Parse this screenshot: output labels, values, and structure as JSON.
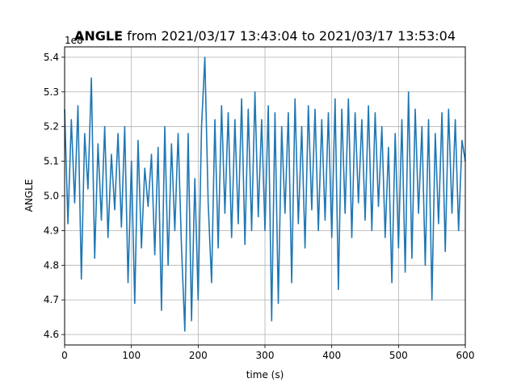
{
  "chart_data": {
    "type": "line",
    "title_bold": "ANGLE",
    "title_rest": " from 2021/03/17 13:43:04 to 2021/03/17 13:53:04",
    "xlabel": "time (s)",
    "ylabel": "ANGLE",
    "y_offset_label": "1e8",
    "xlim": [
      0,
      600
    ],
    "ylim": [
      4.57,
      5.43
    ],
    "xticks": [
      0,
      100,
      200,
      300,
      400,
      500,
      600
    ],
    "xtick_labels": [
      "0",
      "100",
      "200",
      "300",
      "400",
      "500",
      "600"
    ],
    "yticks": [
      4.6,
      4.7,
      4.8,
      4.9,
      5.0,
      5.1,
      5.2,
      5.3,
      5.4
    ],
    "ytick_labels": [
      "4.6",
      "4.7",
      "4.8",
      "4.9",
      "5.0",
      "5.1",
      "5.2",
      "5.3",
      "5.4"
    ],
    "grid": true,
    "line_color": "#1f77b4",
    "series": [
      {
        "x": [
          0,
          5,
          10,
          15,
          20,
          25,
          30,
          35,
          40,
          45,
          50,
          55,
          60,
          65,
          70,
          75,
          80,
          85,
          90,
          95,
          100,
          105,
          110,
          115,
          120,
          125,
          130,
          135,
          140,
          145,
          150,
          155,
          160,
          165,
          170,
          175,
          180,
          185,
          190,
          195,
          200,
          205,
          210,
          215,
          220,
          225,
          230,
          235,
          240,
          245,
          250,
          255,
          260,
          265,
          270,
          275,
          280,
          285,
          290,
          295,
          300,
          305,
          310,
          315,
          320,
          325,
          330,
          335,
          340,
          345,
          350,
          355,
          360,
          365,
          370,
          375,
          380,
          385,
          390,
          395,
          400,
          405,
          410,
          415,
          420,
          425,
          430,
          435,
          440,
          445,
          450,
          455,
          460,
          465,
          470,
          475,
          480,
          485,
          490,
          495,
          500,
          505,
          510,
          515,
          520,
          525,
          530,
          535,
          540,
          545,
          550,
          555,
          560,
          565,
          570,
          575,
          580,
          585,
          590,
          595,
          600
        ],
        "y": [
          5.25,
          4.92,
          5.22,
          4.98,
          5.26,
          4.76,
          5.18,
          5.02,
          5.34,
          4.82,
          5.15,
          4.93,
          5.2,
          4.88,
          5.12,
          4.96,
          5.18,
          4.91,
          5.2,
          4.75,
          5.1,
          4.69,
          5.16,
          4.85,
          5.08,
          4.97,
          5.12,
          4.83,
          5.14,
          4.67,
          5.2,
          4.8,
          5.15,
          4.9,
          5.18,
          4.85,
          4.61,
          5.18,
          4.64,
          5.05,
          4.7,
          5.2,
          5.4,
          4.98,
          4.75,
          5.22,
          4.85,
          5.26,
          4.95,
          5.24,
          4.88,
          5.22,
          4.92,
          5.28,
          4.86,
          5.25,
          4.9,
          5.3,
          4.94,
          5.22,
          4.9,
          5.26,
          4.64,
          5.24,
          4.69,
          5.2,
          4.95,
          5.24,
          4.75,
          5.28,
          4.92,
          5.2,
          4.85,
          5.26,
          4.96,
          5.25,
          4.9,
          5.22,
          4.93,
          5.24,
          4.88,
          5.28,
          4.73,
          5.25,
          4.95,
          5.28,
          4.88,
          5.24,
          4.98,
          5.22,
          4.93,
          5.26,
          4.9,
          5.24,
          4.97,
          5.2,
          4.88,
          5.14,
          4.75,
          5.18,
          4.85,
          5.22,
          4.78,
          5.3,
          4.82,
          5.25,
          4.95,
          5.2,
          4.8,
          5.22,
          4.7,
          5.18,
          4.92,
          5.24,
          4.84,
          5.25,
          4.95,
          5.22,
          4.9,
          5.16,
          5.1
        ]
      }
    ]
  }
}
